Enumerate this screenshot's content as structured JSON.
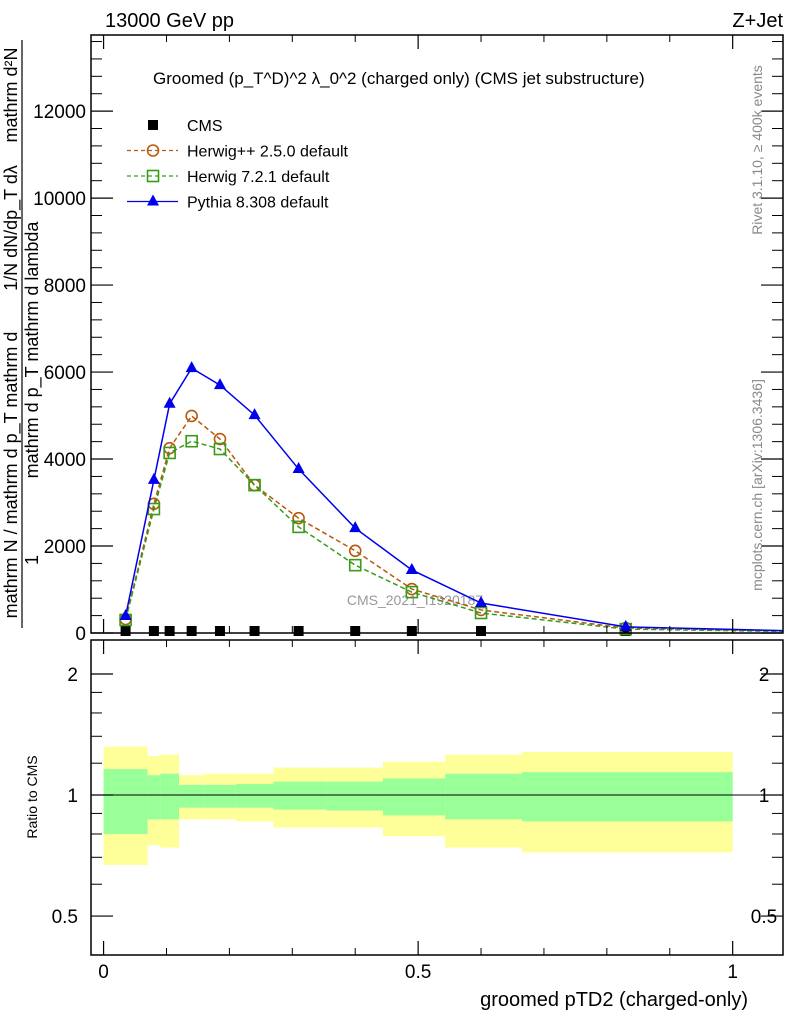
{
  "header": {
    "energy": "13000 GeV pp",
    "process": "Z+Jet"
  },
  "side": {
    "rivet": "Rivet 3.1.10, ≥ 400k events",
    "mcplots": "mcplots.cern.ch [arXiv:1306.3436]"
  },
  "watermark": "CMS_2021_I1920187",
  "ylabel": {
    "num": "1",
    "den1": "mathrm d²N",
    "den2": "mathrm d p_T mathrm d lambda",
    "den3": "mathrm N / mathrm d p_T mathrm d"
  },
  "chart_data": [
    {
      "type": "line",
      "title": "Groomed (p_T^D)^2 λ_0^2  (charged only) (CMS jet substructure)",
      "title_parts": {
        "a": "Groomed",
        "b": "(p",
        "sup": "D",
        "sub": "T",
        "c": ")",
        "sq": "2",
        "d": "λ_0",
        "e": "(charged only) (CMS jet substructure)"
      },
      "xlabel": "groomed pTD2 (charged-only)",
      "ylabel": "1/N dN/dp_T dλ",
      "xlim": [
        -0.02,
        1.08
      ],
      "ylim": [
        0,
        13750
      ],
      "xticks": [
        "0",
        "0.5",
        "1"
      ],
      "xtick_values": [
        0,
        0.5,
        1
      ],
      "yticks": [
        "0",
        "2000",
        "4000",
        "6000",
        "8000",
        "10000",
        "12000"
      ],
      "ytick_values": [
        0,
        2000,
        4000,
        6000,
        8000,
        10000,
        12000
      ],
      "legend_position": "top-left",
      "x": [
        0.035,
        0.08,
        0.105,
        0.14,
        0.185,
        0.24,
        0.31,
        0.4,
        0.49,
        0.6,
        0.83
      ],
      "series": [
        {
          "name": "CMS",
          "color": "#000000",
          "marker": "square",
          "dashed": false,
          "line": false,
          "values": [
            20,
            20,
            20,
            20,
            20,
            20,
            20,
            20,
            20,
            20,
            20
          ]
        },
        {
          "name": "Herwig++ 2.5.0 default",
          "color": "#b85a0d",
          "marker": "circle",
          "dashed": true,
          "line": true,
          "values": [
            320,
            2970,
            4250,
            4990,
            4460,
            3400,
            2640,
            1890,
            1010,
            530,
            115
          ]
        },
        {
          "name": "Herwig 7.2.1 default",
          "color": "#3a9a1a",
          "marker": "square-open",
          "dashed": true,
          "line": true,
          "values": [
            300,
            2850,
            4140,
            4410,
            4230,
            3400,
            2440,
            1560,
            940,
            460,
            90
          ]
        },
        {
          "name": "Pythia 8.308 default",
          "color": "#0000ee",
          "marker": "triangle",
          "dashed": false,
          "line": true,
          "values": [
            390,
            3520,
            5270,
            6090,
            5700,
            5010,
            3770,
            2410,
            1450,
            690,
            140
          ]
        }
      ]
    },
    {
      "type": "area",
      "ylabel": "Ratio to CMS",
      "yscale": "log",
      "ylim": [
        0.4,
        2.43
      ],
      "yticks": [
        "0.5",
        "1",
        "2"
      ],
      "ytick_values": [
        0.5,
        1,
        2
      ],
      "bin_edges": [
        0,
        0.07,
        0.09,
        0.12,
        0.16,
        0.21,
        0.27,
        0.354,
        0.444,
        0.543,
        0.665,
        1.0
      ],
      "yellow_band": {
        "color": "#ffff99",
        "up": [
          1.32,
          1.25,
          1.26,
          1.12,
          1.13,
          1.13,
          1.17,
          1.17,
          1.21,
          1.26,
          1.28
        ],
        "down": [
          0.67,
          0.75,
          0.74,
          0.87,
          0.87,
          0.86,
          0.83,
          0.83,
          0.79,
          0.74,
          0.72
        ]
      },
      "green_band": {
        "color": "#99ff99",
        "up": [
          1.16,
          1.12,
          1.13,
          1.06,
          1.06,
          1.065,
          1.08,
          1.08,
          1.1,
          1.13,
          1.14
        ],
        "down": [
          0.8,
          0.87,
          0.87,
          0.93,
          0.93,
          0.93,
          0.92,
          0.915,
          0.89,
          0.87,
          0.86
        ]
      }
    }
  ]
}
